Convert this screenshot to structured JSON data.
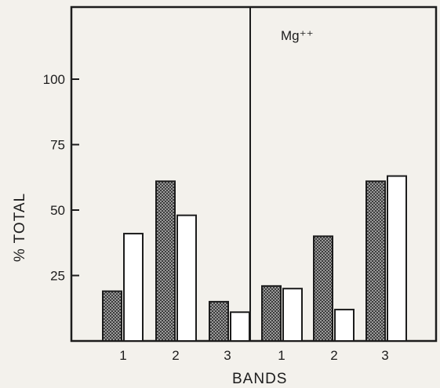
{
  "chart_data": {
    "type": "bar",
    "title": "",
    "xlabel": "BANDS",
    "ylabel": "% TOTAL",
    "ylim": [
      0,
      100
    ],
    "yticks": [
      25,
      50,
      75,
      100
    ],
    "grid": false,
    "legend": "none",
    "panels": [
      {
        "annotation": "",
        "categories": [
          "1",
          "2",
          "3"
        ],
        "series": [
          {
            "values": [
              19,
              61,
              15
            ],
            "fill": "hatched"
          },
          {
            "values": [
              41,
              48,
              11
            ],
            "fill": "white"
          }
        ]
      },
      {
        "annotation": "Mg⁺⁺",
        "categories": [
          "1",
          "2",
          "3"
        ],
        "series": [
          {
            "values": [
              21,
              40,
              61
            ],
            "fill": "hatched"
          },
          {
            "values": [
              20,
              12,
              63
            ],
            "fill": "white"
          }
        ]
      }
    ]
  }
}
